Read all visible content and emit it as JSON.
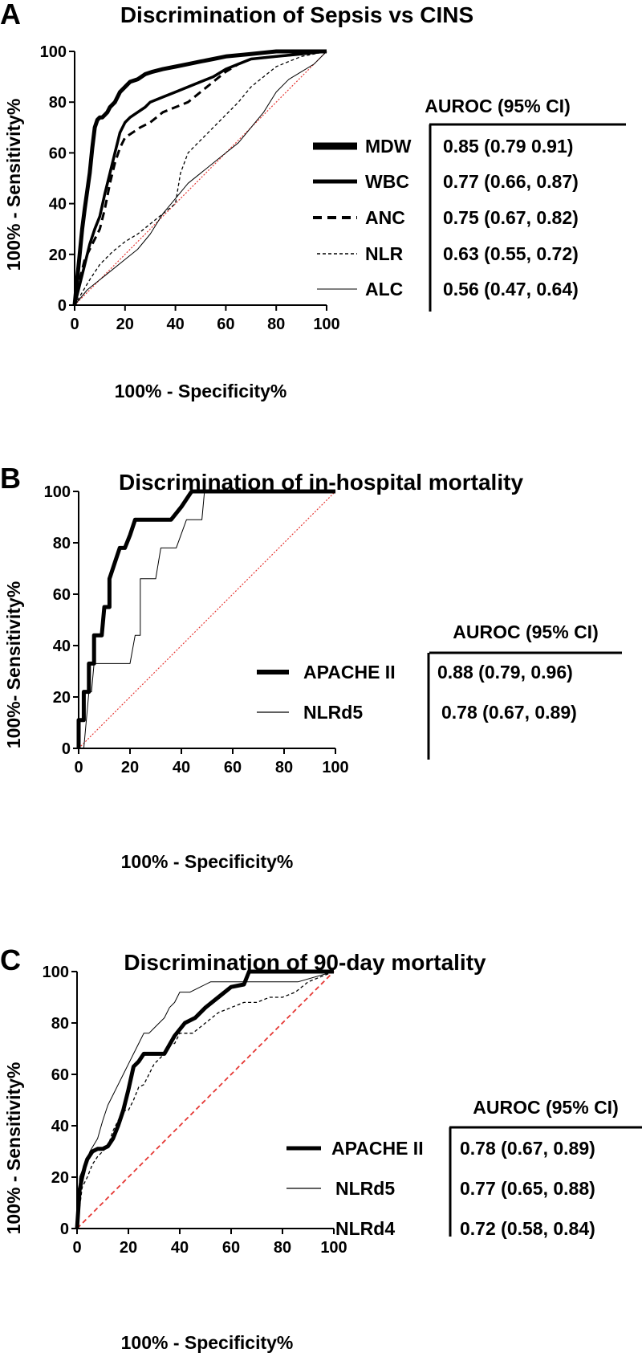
{
  "chart_data": [
    {
      "panel_label": "A",
      "type": "line",
      "title": "Discrimination of Sepsis vs CINS",
      "xlabel": "100% - Specificity%",
      "ylabel": "100% - Sensitivity%",
      "xlim": [
        0,
        100
      ],
      "ylim": [
        0,
        100
      ],
      "xticks": [
        "0",
        "20",
        "40",
        "60",
        "80",
        "100"
      ],
      "yticks": [
        "0",
        "20",
        "40",
        "60",
        "80",
        "100"
      ],
      "table_header": "AUROC (95% CI)",
      "reference_line": {
        "x": [
          0,
          100
        ],
        "y": [
          0,
          100
        ],
        "color": "#e53935",
        "style": "dotted"
      },
      "series": [
        {
          "name": "MDW",
          "auroc": "0.85 (0.79 0.91)",
          "style": "thick",
          "x": [
            0,
            1,
            2,
            3,
            4,
            5,
            6,
            7,
            8,
            9,
            10,
            11,
            12,
            13,
            14,
            16,
            18,
            20,
            22,
            25,
            28,
            31,
            35,
            40,
            45,
            50,
            55,
            60,
            70,
            80,
            90,
            100
          ],
          "y": [
            0,
            10,
            20,
            30,
            38,
            45,
            52,
            62,
            70,
            73,
            74,
            74,
            75,
            76,
            78,
            80,
            84,
            86,
            88,
            89,
            91,
            92,
            93,
            94,
            95,
            96,
            97,
            98,
            99,
            100,
            100,
            100
          ]
        },
        {
          "name": "WBC",
          "auroc": "0.77 (0.66, 0.87)",
          "style": "medium",
          "x": [
            0,
            2,
            4,
            5,
            6,
            8,
            10,
            12,
            14,
            16,
            18,
            20,
            22,
            25,
            28,
            30,
            35,
            40,
            45,
            50,
            55,
            60,
            65,
            70,
            80,
            90,
            100
          ],
          "y": [
            0,
            8,
            16,
            20,
            24,
            30,
            35,
            44,
            52,
            60,
            68,
            72,
            74,
            76,
            78,
            80,
            82,
            84,
            86,
            88,
            90,
            93,
            95,
            97,
            98,
            99,
            100
          ]
        },
        {
          "name": "ANC",
          "auroc": "0.75 (0.67, 0.82)",
          "style": "dashed",
          "x": [
            0,
            2,
            4,
            6,
            8,
            10,
            12,
            14,
            16,
            18,
            20,
            23,
            26,
            30,
            35,
            40,
            45,
            50,
            55,
            60,
            65,
            70,
            80,
            90,
            100
          ],
          "y": [
            0,
            10,
            18,
            22,
            26,
            30,
            38,
            48,
            56,
            62,
            66,
            68,
            70,
            72,
            76,
            78,
            80,
            84,
            88,
            92,
            95,
            97,
            98,
            99,
            100
          ]
        },
        {
          "name": "NLR",
          "auroc": "0.63 (0.55, 0.72)",
          "style": "dotted",
          "x": [
            0,
            3,
            6,
            10,
            15,
            20,
            25,
            30,
            35,
            40,
            42,
            45,
            50,
            55,
            60,
            65,
            70,
            75,
            80,
            85,
            90,
            95,
            100
          ],
          "y": [
            0,
            5,
            10,
            16,
            21,
            25,
            28,
            32,
            36,
            40,
            52,
            60,
            65,
            70,
            75,
            80,
            86,
            90,
            94,
            96,
            98,
            99,
            100
          ]
        },
        {
          "name": "ALC",
          "auroc": "0.56 (0.47, 0.64)",
          "style": "thin",
          "x": [
            0,
            5,
            10,
            15,
            20,
            25,
            30,
            35,
            40,
            45,
            50,
            55,
            60,
            65,
            70,
            75,
            80,
            85,
            90,
            95,
            100
          ],
          "y": [
            0,
            6,
            10,
            14,
            18,
            22,
            28,
            36,
            42,
            48,
            52,
            56,
            60,
            64,
            70,
            76,
            84,
            89,
            92,
            95,
            100
          ]
        }
      ]
    },
    {
      "panel_label": "B",
      "type": "line",
      "title": "Discrimination of in-hospital mortality",
      "xlabel": "100% - Specificity%",
      "ylabel": "100%- Sensitivity%",
      "xlim": [
        0,
        100
      ],
      "ylim": [
        0,
        100
      ],
      "xticks": [
        "0",
        "20",
        "40",
        "60",
        "80",
        "100"
      ],
      "yticks": [
        "0",
        "20",
        "40",
        "60",
        "80",
        "100"
      ],
      "table_header": "AUROC (95% CI)",
      "reference_line": {
        "x": [
          0,
          100
        ],
        "y": [
          0,
          100
        ],
        "color": "#e53935",
        "style": "dotted"
      },
      "series": [
        {
          "name": "APACHE II",
          "auroc": "0.88 (0.79, 0.96)",
          "style": "thick",
          "x": [
            0,
            0,
            2,
            2,
            4,
            4,
            6,
            6,
            9,
            10,
            12,
            12,
            14,
            16,
            18,
            20,
            22,
            24,
            30,
            36,
            40,
            44,
            60,
            80,
            100
          ],
          "y": [
            0,
            11,
            11,
            22,
            22,
            33,
            33,
            44,
            44,
            55,
            55,
            66,
            72,
            78,
            78,
            83,
            89,
            89,
            89,
            89,
            94,
            100,
            100,
            100,
            100
          ]
        },
        {
          "name": "NLRd5",
          "auroc": "0.78 (0.67, 0.89)",
          "style": "thin",
          "x": [
            0,
            2,
            3,
            4,
            5,
            6,
            7,
            8,
            10,
            12,
            14,
            20,
            22,
            24,
            24,
            30,
            32,
            34,
            38,
            42,
            46,
            48,
            49,
            60,
            80,
            100
          ],
          "y": [
            0,
            0,
            11,
            22,
            22,
            33,
            33,
            33,
            33,
            33,
            33,
            33,
            44,
            44,
            66,
            66,
            78,
            78,
            78,
            89,
            89,
            89,
            100,
            100,
            100,
            100
          ]
        }
      ]
    },
    {
      "panel_label": "C",
      "type": "line",
      "title": "Discrimination of 90-day mortality",
      "xlabel": "100% - Specificity%",
      "ylabel": "100% - Sensitivity%",
      "xlim": [
        0,
        100
      ],
      "ylim": [
        0,
        100
      ],
      "xticks": [
        "0",
        "20",
        "40",
        "60",
        "80",
        "100"
      ],
      "yticks": [
        "0",
        "20",
        "40",
        "60",
        "80",
        "100"
      ],
      "table_header": "AUROC (95% CI)",
      "reference_line": {
        "x": [
          0,
          100
        ],
        "y": [
          0,
          100
        ],
        "color": "#e53935",
        "style": "dashed"
      },
      "series": [
        {
          "name": "APACHE II",
          "auroc": "0.78 (0.67, 0.89)",
          "style": "thick",
          "x": [
            0,
            1,
            2,
            3,
            4,
            6,
            8,
            10,
            12,
            14,
            16,
            18,
            20,
            22,
            24,
            26,
            30,
            34,
            38,
            42,
            46,
            50,
            55,
            60,
            65,
            67,
            70,
            80,
            90,
            100
          ],
          "y": [
            0,
            15,
            20,
            24,
            27,
            30,
            31,
            31,
            32,
            35,
            40,
            46,
            54,
            63,
            65,
            68,
            68,
            68,
            75,
            80,
            82,
            86,
            90,
            94,
            95,
            100,
            100,
            100,
            100,
            100
          ]
        },
        {
          "name": "NLRd5",
          "auroc": "0.77 (0.65, 0.88)",
          "style": "thin",
          "x": [
            0,
            1,
            3,
            5,
            8,
            10,
            12,
            14,
            16,
            18,
            20,
            22,
            24,
            26,
            28,
            30,
            32,
            34,
            36,
            38,
            40,
            44,
            48,
            52,
            60,
            70,
            80,
            86,
            100
          ],
          "y": [
            0,
            20,
            25,
            30,
            35,
            42,
            48,
            52,
            56,
            60,
            64,
            68,
            72,
            76,
            76,
            78,
            80,
            82,
            86,
            88,
            92,
            92,
            94,
            96,
            96,
            96,
            96,
            96,
            100
          ]
        },
        {
          "name": "NLRd4",
          "auroc": "0.72 (0.58, 0.84)",
          "style": "dotted",
          "x": [
            0,
            2,
            4,
            6,
            8,
            10,
            12,
            14,
            16,
            18,
            20,
            22,
            24,
            26,
            28,
            30,
            32,
            34,
            36,
            38,
            40,
            45,
            50,
            55,
            60,
            65,
            70,
            75,
            80,
            85,
            90,
            100
          ],
          "y": [
            0,
            16,
            20,
            25,
            28,
            30,
            32,
            38,
            42,
            46,
            46,
            50,
            55,
            56,
            60,
            64,
            66,
            68,
            72,
            72,
            76,
            76,
            80,
            84,
            86,
            88,
            88,
            90,
            90,
            92,
            96,
            100
          ]
        }
      ]
    }
  ]
}
